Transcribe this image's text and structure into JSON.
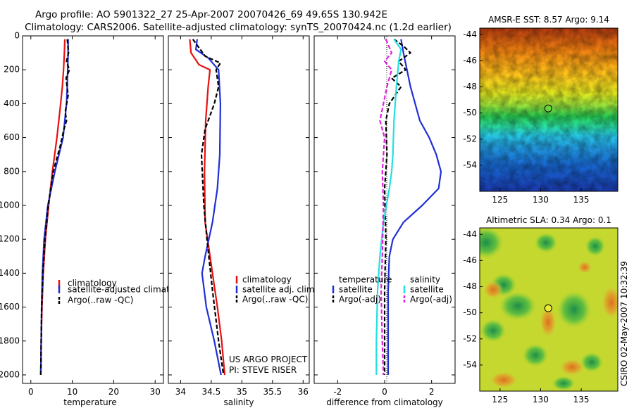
{
  "figure": {
    "title_line1": "Argo profile: AO 5901322_27 25-Apr-2007 20070426_69 49.65S 130.942E",
    "title_line2": "Climatology: CARS2006. Satellite-adjusted climatology: synTS_20070424.nc (1.2d earlier)",
    "side_label": "CSIRO 02-May-2007 10:32:39",
    "project_line1": "US ARGO PROJECT",
    "project_line2": "PI: STEVE RISER"
  },
  "colors": {
    "climatology": "#e81010",
    "satellite": "#1f2fd6",
    "argo": "#000000",
    "salinity_satellite": "#22e0e0",
    "salinity_argo": "#e020e0"
  },
  "chart_data": [
    {
      "type": "line",
      "xlabel": "temperature",
      "xlim": [
        -2,
        32
      ],
      "xticks": [
        "0",
        "10",
        "20",
        "30"
      ],
      "ylim": [
        2050,
        0
      ],
      "yticks": [
        "0",
        "200",
        "400",
        "600",
        "800",
        "1000",
        "1200",
        "1400",
        "1600",
        "1800",
        "2000"
      ],
      "legend": [
        "climatology",
        "satellite-adjusted climatology",
        "Argo(..raw -QC)"
      ],
      "legend_placement": "lower-right",
      "series": [
        {
          "name": "climatology",
          "x": [
            8.2,
            8.1,
            7.9,
            7.6,
            7.2,
            6.3,
            5.2,
            4.3,
            3.5,
            3.0,
            2.7,
            2.5,
            2.4
          ],
          "y": [
            20,
            100,
            200,
            300,
            400,
            600,
            800,
            1000,
            1200,
            1400,
            1600,
            1800,
            2000
          ]
        },
        {
          "name": "satellite-adjusted climatology",
          "x": [
            9.0,
            9.0,
            8.9,
            8.8,
            8.6,
            7.8,
            5.8,
            4.1,
            3.2,
            2.8,
            2.6,
            2.5,
            2.4
          ],
          "y": [
            20,
            100,
            200,
            300,
            400,
            600,
            800,
            1000,
            1200,
            1400,
            1600,
            1800,
            2000
          ]
        },
        {
          "name": "Argo(..raw -QC)",
          "x": [
            8.8,
            9.1,
            8.6,
            9.3,
            8.5,
            9.0,
            8.3,
            8.6,
            8.0,
            7.1,
            5.4,
            4.2,
            3.4,
            2.9,
            2.6,
            2.5,
            2.4
          ],
          "y": [
            20,
            100,
            150,
            200,
            250,
            350,
            450,
            500,
            550,
            650,
            800,
            1000,
            1200,
            1400,
            1600,
            1800,
            2000
          ]
        }
      ]
    },
    {
      "type": "line",
      "xlabel": "salinity",
      "xlim": [
        33.8,
        36.1
      ],
      "xticks": [
        "34",
        "34.5",
        "35",
        "35.5",
        "36"
      ],
      "ylim": [
        2050,
        0
      ],
      "legend": [
        "climatology",
        "satellite adj. clim.",
        "Argo(..raw -QC)"
      ],
      "legend_placement": "lower-right",
      "series": [
        {
          "name": "climatology",
          "x": [
            34.15,
            34.17,
            34.3,
            34.48,
            34.45,
            34.41,
            34.39,
            34.4,
            34.44,
            34.52,
            34.6,
            34.67,
            34.72
          ],
          "y": [
            20,
            100,
            170,
            200,
            300,
            500,
            800,
            1100,
            1200,
            1400,
            1600,
            1800,
            2000
          ]
        },
        {
          "name": "satellite adj. clim.",
          "x": [
            34.27,
            34.25,
            34.45,
            34.62,
            34.65,
            34.64,
            34.6,
            34.52,
            34.4,
            34.35,
            34.42,
            34.55,
            34.66
          ],
          "y": [
            20,
            80,
            130,
            200,
            400,
            700,
            900,
            1100,
            1300,
            1400,
            1600,
            1800,
            2000
          ]
        },
        {
          "name": "Argo(..raw -QC)",
          "x": [
            34.2,
            34.4,
            34.65,
            34.58,
            34.62,
            34.55,
            34.4,
            34.34,
            34.38,
            34.43,
            34.52,
            34.62,
            34.7
          ],
          "y": [
            20,
            120,
            160,
            200,
            300,
            400,
            550,
            700,
            1000,
            1200,
            1500,
            1800,
            2000
          ]
        }
      ]
    },
    {
      "type": "line",
      "xlabel": "difference from climatology",
      "xlim": [
        -3.0,
        3.0
      ],
      "xticks": [
        "-2",
        "0",
        "2"
      ],
      "ylim": [
        2050,
        0
      ],
      "legend_groups": [
        {
          "title": "temperature",
          "entries": [
            "satellite",
            "Argo(-adj)"
          ]
        },
        {
          "title": "salinity",
          "entries": [
            "satellite",
            "Argo(-adj)"
          ]
        }
      ],
      "legend_placement": "lower-center",
      "series": [
        {
          "name": "temperature satellite",
          "x": [
            0.7,
            0.8,
            1.1,
            1.5,
            1.9,
            2.2,
            2.4,
            2.3,
            1.6,
            0.8,
            0.35,
            0.2,
            0.15,
            0.15,
            0.15
          ],
          "y": [
            20,
            100,
            300,
            500,
            600,
            700,
            800,
            900,
            1000,
            1100,
            1200,
            1300,
            1500,
            1700,
            2000
          ]
        },
        {
          "name": "temperature Argo(-adj)",
          "x": [
            0.4,
            0.8,
            1.1,
            0.6,
            0.9,
            0.3,
            0.7,
            0.2,
            0.05,
            0.1,
            0.0,
            0.05,
            0.0,
            0.0
          ],
          "y": [
            20,
            60,
            100,
            150,
            200,
            250,
            300,
            400,
            500,
            700,
            900,
            1200,
            1500,
            2000
          ]
        },
        {
          "name": "salinity satellite",
          "x": [
            0.4,
            0.7,
            0.6,
            0.5,
            0.4,
            0.35,
            0.3,
            0.2,
            -0.05,
            -0.2,
            -0.3,
            -0.35,
            -0.35
          ],
          "y": [
            20,
            80,
            150,
            300,
            500,
            700,
            800,
            900,
            1100,
            1300,
            1500,
            1800,
            2000
          ]
        },
        {
          "name": "salinity Argo(-adj)",
          "x": [
            0.05,
            0.3,
            0.0,
            0.3,
            0.1,
            -0.2,
            0.0,
            -0.1,
            -0.05,
            -0.1,
            -0.15,
            -0.1,
            -0.05
          ],
          "y": [
            20,
            100,
            150,
            200,
            300,
            500,
            600,
            800,
            1000,
            1300,
            1500,
            1800,
            2000
          ]
        }
      ]
    },
    {
      "type": "heatmap",
      "title": "AMSR-E SST: 8.57 Argo: 9.14",
      "xticks": [
        "125",
        "130",
        "135"
      ],
      "yticks": [
        "-44",
        "-46",
        "-48",
        "-50",
        "-52",
        "-54"
      ],
      "xlim": [
        122.5,
        139.5
      ],
      "ylim": [
        -56,
        -43.5
      ],
      "marker": {
        "lon": 130.94,
        "lat": -49.65
      }
    },
    {
      "type": "heatmap",
      "title": "Altimetric SLA: 0.34 Argo: 0.1",
      "xticks": [
        "125",
        "130",
        "135"
      ],
      "yticks": [
        "-44",
        "-46",
        "-48",
        "-50",
        "-52",
        "-54"
      ],
      "xlim": [
        122.5,
        139.5
      ],
      "ylim": [
        -56,
        -43.5
      ],
      "marker": {
        "lon": 130.94,
        "lat": -49.65
      }
    }
  ]
}
